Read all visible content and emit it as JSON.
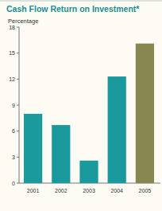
{
  "chart_data": {
    "type": "bar",
    "title": "Cash Flow Return on Investment*",
    "y_label": "Percentage",
    "categories": [
      "2001",
      "2002",
      "2003",
      "2004",
      "2005"
    ],
    "values": [
      8.0,
      6.7,
      2.6,
      12.3,
      16.1
    ],
    "colors": [
      "#1b9a9e",
      "#1b9a9e",
      "#1b9a9e",
      "#1b9a9e",
      "#878750"
    ],
    "ylim": [
      0,
      18
    ],
    "yticks": [
      0,
      3,
      6,
      9,
      12,
      15,
      18
    ],
    "grid": false
  }
}
